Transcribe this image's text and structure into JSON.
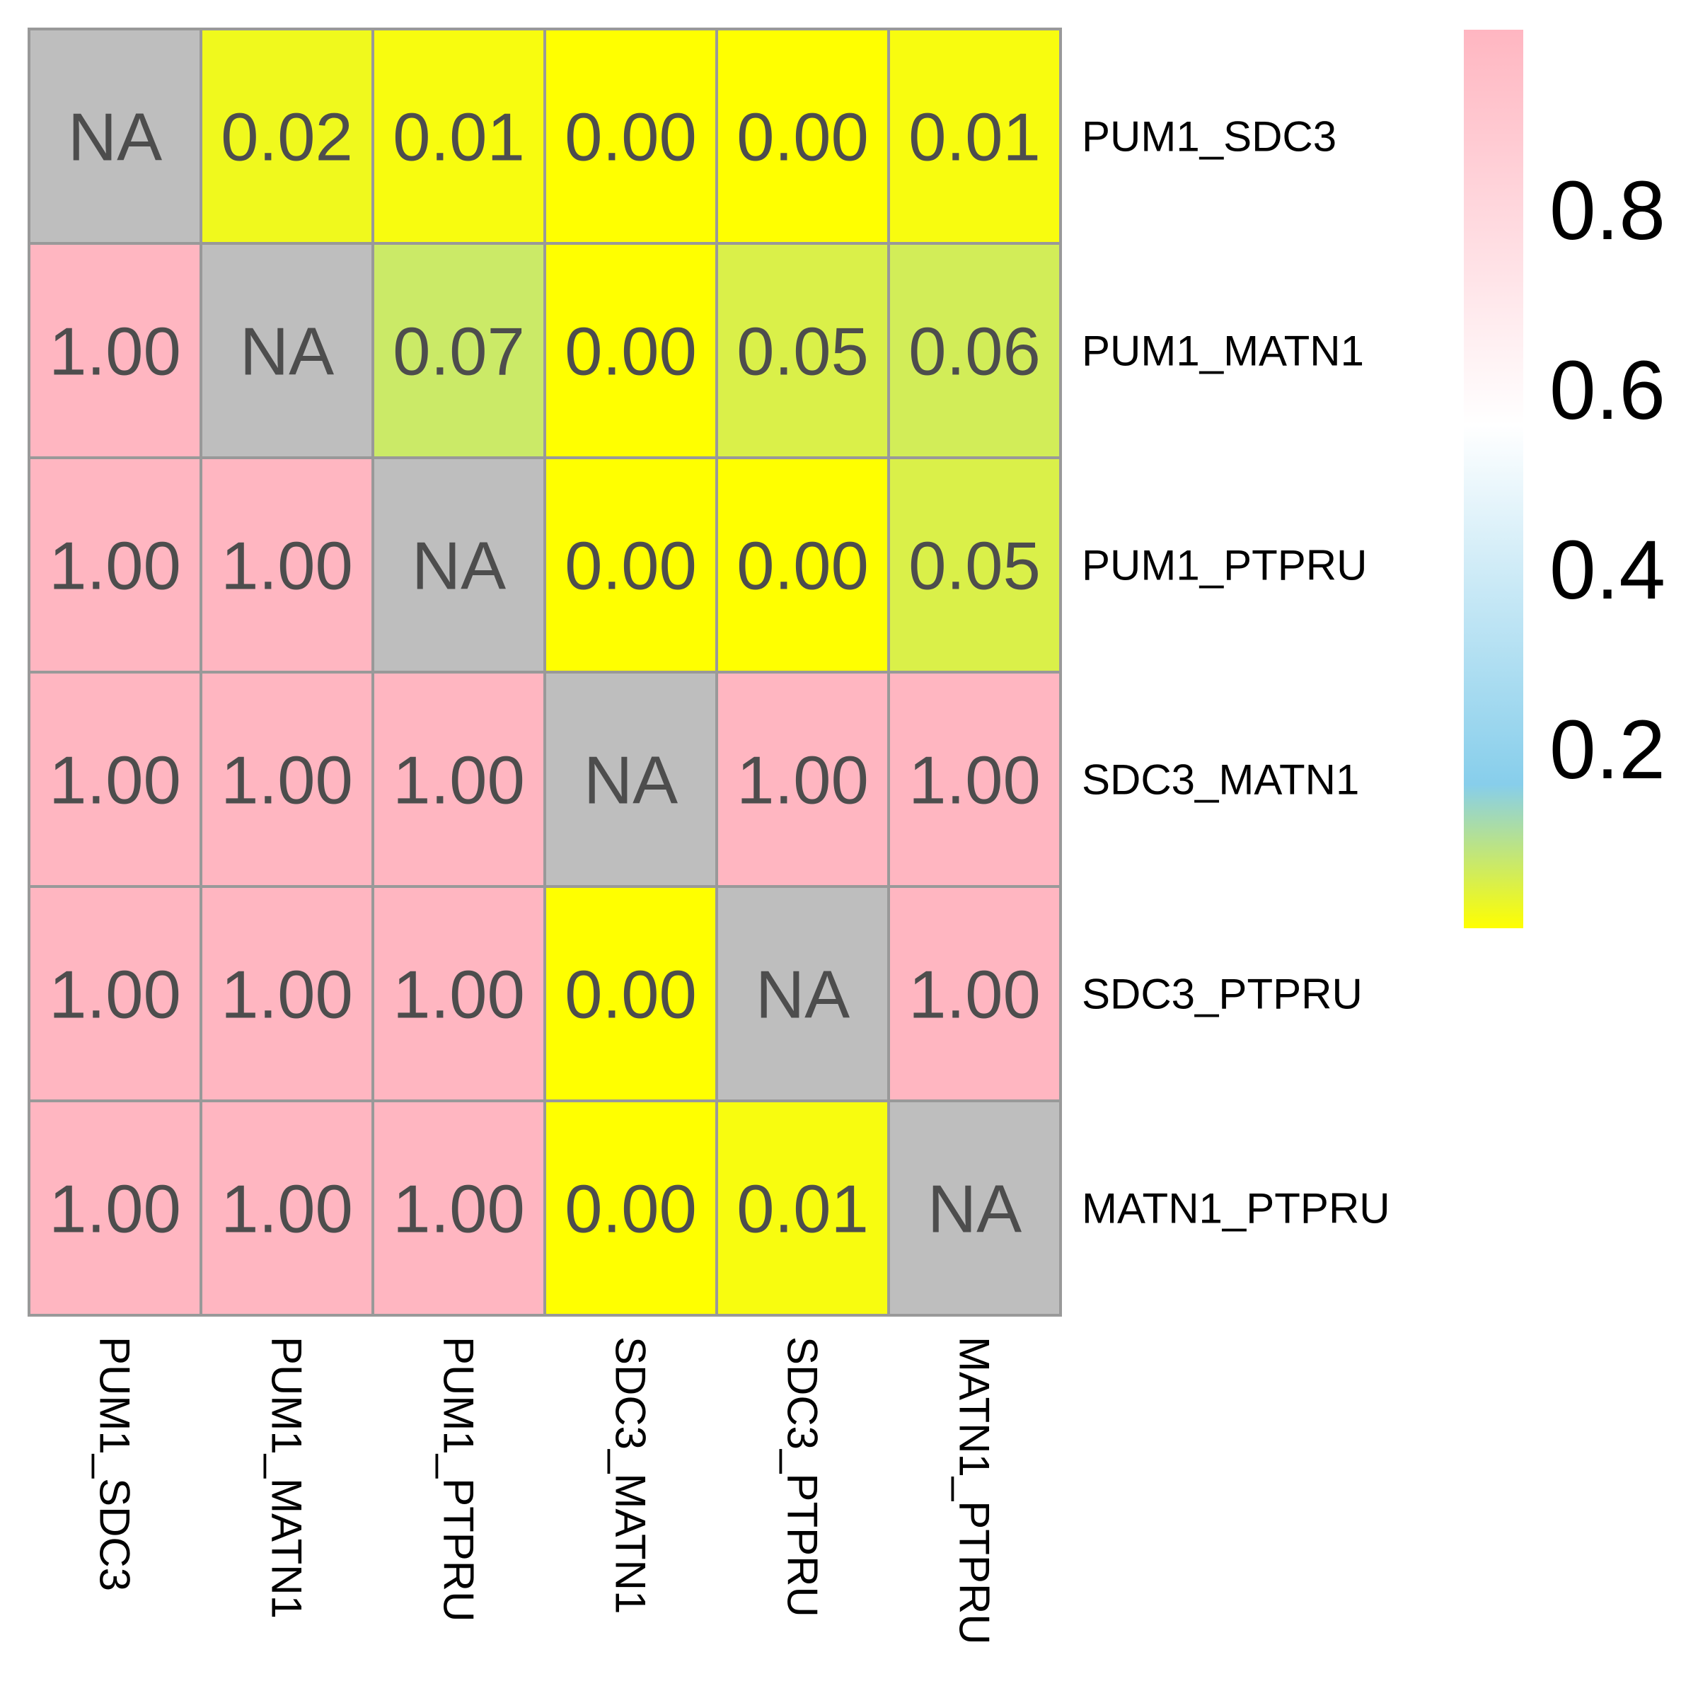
{
  "chart_data": {
    "type": "heatmap",
    "rows": [
      "PUM1_SDC3",
      "PUM1_MATN1",
      "PUM1_PTPRU",
      "SDC3_MATN1",
      "SDC3_PTPRU",
      "MATN1_PTPRU"
    ],
    "columns": [
      "PUM1_SDC3",
      "PUM1_MATN1",
      "PUM1_PTPRU",
      "SDC3_MATN1",
      "SDC3_PTPRU",
      "MATN1_PTPRU"
    ],
    "values": [
      [
        null,
        0.02,
        0.01,
        0.0,
        0.0,
        0.01
      ],
      [
        1.0,
        null,
        0.07,
        0.0,
        0.05,
        0.06
      ],
      [
        1.0,
        1.0,
        null,
        0.0,
        0.0,
        0.05
      ],
      [
        1.0,
        1.0,
        1.0,
        null,
        1.0,
        1.0
      ],
      [
        1.0,
        1.0,
        1.0,
        0.0,
        null,
        1.0
      ],
      [
        1.0,
        1.0,
        1.0,
        0.0,
        0.01,
        null
      ]
    ],
    "cell_labels": [
      [
        "NA",
        "0.02",
        "0.01",
        "0.00",
        "0.00",
        "0.01"
      ],
      [
        "1.00",
        "NA",
        "0.07",
        "0.00",
        "0.05",
        "0.06"
      ],
      [
        "1.00",
        "1.00",
        "NA",
        "0.00",
        "0.00",
        "0.05"
      ],
      [
        "1.00",
        "1.00",
        "1.00",
        "NA",
        "1.00",
        "1.00"
      ],
      [
        "1.00",
        "1.00",
        "1.00",
        "0.00",
        "NA",
        "1.00"
      ],
      [
        "1.00",
        "1.00",
        "1.00",
        "0.00",
        "0.01",
        "NA"
      ]
    ],
    "na_label": "NA",
    "legend": {
      "ticks": [
        0.2,
        0.4,
        0.6,
        0.8
      ],
      "tick_labels": [
        "0.2",
        "0.4",
        "0.6",
        "0.8"
      ],
      "range": [
        0,
        1
      ],
      "placement": "right"
    },
    "colors": {
      "na": "#bebebe",
      "gradient": [
        {
          "value": 0.0,
          "color": "#ffff00"
        },
        {
          "value": 0.16,
          "color": "#87ceeb"
        },
        {
          "value": 0.56,
          "color": "#ffffff"
        },
        {
          "value": 1.0,
          "color": "#ffb6c1"
        }
      ],
      "cell_border": "#999999",
      "cell_text": "#4d4d4d"
    },
    "title": "",
    "xlabel": "",
    "ylabel": "",
    "grid": true
  }
}
